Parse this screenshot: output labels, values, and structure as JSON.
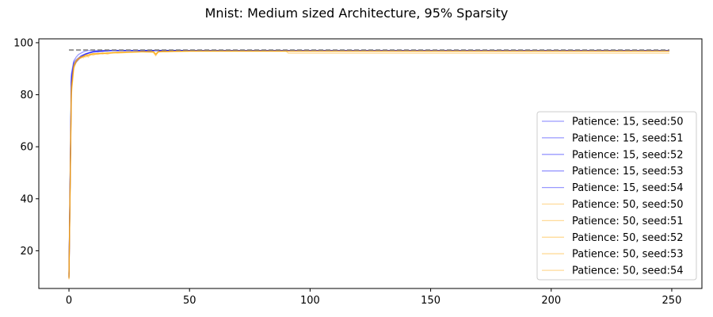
{
  "chart_data": {
    "type": "line",
    "title": "Mnist: Medium sized Architecture, 95% Sparsity",
    "xlabel": "",
    "ylabel": "",
    "xlim": [
      -12.5,
      262.5
    ],
    "ylim": [
      5.5,
      101.5
    ],
    "x_ticks": [
      0,
      50,
      100,
      150,
      200,
      250
    ],
    "y_ticks": [
      20,
      40,
      60,
      80,
      100
    ],
    "grid": false,
    "legend_position": "center-right",
    "colors": {
      "patience15": "#0000ff",
      "patience50": "#ffa500",
      "dashed_ref": "#808080"
    },
    "x": [
      0,
      1,
      2,
      3,
      4,
      5,
      6,
      7,
      8,
      9,
      10,
      12,
      14,
      16,
      18,
      20,
      25,
      30,
      35,
      36,
      37,
      38,
      40,
      45,
      50,
      60,
      70,
      80,
      90,
      91,
      92,
      93,
      100,
      150,
      200,
      249
    ],
    "series": [
      {
        "name": "Patience: 15, seed:50",
        "color": "#0000ff",
        "values": [
          9.8,
          88,
          93,
          94.5,
          95.5,
          96,
          96.5,
          96.8,
          97,
          97,
          97,
          97,
          97,
          97,
          97,
          97,
          97,
          97,
          97,
          97,
          97,
          97,
          97,
          97,
          97,
          97,
          97,
          97,
          97,
          97,
          97,
          97,
          97,
          97,
          97,
          97
        ]
      },
      {
        "name": "Patience: 15, seed:51",
        "color": "#0000ff",
        "values": [
          10,
          85,
          91,
          92.5,
          93.5,
          94.5,
          95,
          95.5,
          96,
          96.2,
          96.5,
          96.6,
          96.8,
          96.9,
          97,
          97,
          97,
          97,
          97,
          97,
          97,
          97,
          97,
          97,
          97,
          97,
          97,
          97,
          97,
          97,
          97,
          97,
          97,
          97,
          97,
          97
        ]
      },
      {
        "name": "Patience: 15, seed:52",
        "color": "#0000ff",
        "values": [
          10.5,
          86,
          92,
          93,
          94,
          94.8,
          95.3,
          95.8,
          96,
          96.3,
          96.5,
          96.7,
          96.8,
          96.9,
          97,
          97,
          97,
          97,
          97,
          97,
          97,
          97,
          97,
          97,
          97,
          97,
          97,
          97,
          97,
          97,
          97,
          97,
          97,
          97,
          97,
          97
        ]
      },
      {
        "name": "Patience: 15, seed:53",
        "color": "#0000ff",
        "values": [
          9.5,
          84,
          91,
          92.8,
          93.8,
          94.6,
          95.1,
          95.6,
          95.9,
          96.2,
          96.4,
          96.6,
          96.8,
          96.9,
          97,
          97,
          97,
          97,
          97,
          97,
          97,
          97,
          97,
          97,
          97,
          97,
          97,
          97,
          97,
          97,
          97,
          97,
          97,
          97,
          97,
          97
        ]
      },
      {
        "name": "Patience: 15, seed:54",
        "color": "#0000ff",
        "values": [
          11,
          87,
          92.5,
          93.5,
          94.2,
          95,
          95.4,
          95.8,
          96.1,
          96.3,
          96.6,
          96.7,
          96.8,
          96.9,
          97,
          97,
          97,
          97,
          97,
          97,
          97,
          97,
          97,
          97,
          97,
          97,
          97,
          97,
          97,
          97,
          97,
          97,
          97,
          97,
          97,
          97
        ]
      },
      {
        "name": "Patience: 50, seed:50",
        "color": "#ffa500",
        "values": [
          9,
          80,
          90,
          92.5,
          94,
          94.5,
          94.2,
          95.2,
          94.5,
          95.5,
          95.8,
          95.5,
          96,
          95.6,
          96.2,
          96,
          96.3,
          96.5,
          96.2,
          95,
          96.5,
          96.6,
          96.5,
          96.7,
          96.8,
          96.8,
          96.8,
          96.8,
          96.8,
          96,
          96,
          96,
          96,
          96,
          96,
          96
        ]
      },
      {
        "name": "Patience: 50, seed:51",
        "color": "#ffa500",
        "values": [
          9.5,
          82,
          91,
          93,
          93.8,
          94.3,
          94.8,
          94.5,
          95.3,
          95.6,
          95.2,
          95.9,
          95.7,
          96.1,
          96,
          96.3,
          96.4,
          96.5,
          96.5,
          95.5,
          96.4,
          96.6,
          96.6,
          96.7,
          96.8,
          96.8,
          96.8,
          96.8,
          96.8,
          96.8,
          96.8,
          96.8,
          96.8,
          96.8,
          96.8,
          96.8
        ]
      },
      {
        "name": "Patience: 50, seed:52",
        "color": "#ffa500",
        "values": [
          10,
          83,
          91.5,
          93.2,
          94.1,
          94,
          94.9,
          95.3,
          95,
          95.7,
          95.5,
          96,
          95.8,
          96.2,
          96.1,
          96.3,
          96.4,
          96.5,
          96.6,
          95.8,
          96.5,
          96.6,
          96.7,
          96.7,
          96.8,
          96.8,
          96.8,
          96.8,
          96.8,
          96.8,
          96.8,
          96.8,
          96.8,
          96.8,
          96.8,
          96.8
        ]
      },
      {
        "name": "Patience: 50, seed:53",
        "color": "#ffa500",
        "values": [
          9.2,
          81,
          90.5,
          92.8,
          93.6,
          94.4,
          94.6,
          95,
          95.4,
          95.2,
          95.8,
          95.7,
          96,
          95.9,
          96.2,
          96.2,
          96.4,
          96.5,
          96.5,
          95.3,
          96.4,
          96.6,
          96.6,
          96.7,
          96.8,
          96.8,
          96.8,
          96.8,
          96.8,
          96.8,
          96.8,
          96.8,
          96.8,
          96.8,
          96.8,
          96.8
        ]
      },
      {
        "name": "Patience: 50, seed:54",
        "color": "#ffa500",
        "values": [
          9.8,
          82.5,
          91.2,
          93.1,
          93.9,
          94.6,
          94.7,
          95.4,
          95.2,
          95.6,
          95.9,
          95.8,
          96.1,
          96,
          96.2,
          96.3,
          96.4,
          96.5,
          96.6,
          95.6,
          96.5,
          96.6,
          96.7,
          96.7,
          96.8,
          96.8,
          96.8,
          96.8,
          96.8,
          96.8,
          96.8,
          96.8,
          96.8,
          96.8,
          96.8,
          96.8
        ]
      }
    ],
    "reference_lines": [
      {
        "y": 97.2,
        "color": "#808080",
        "style": "dashed"
      }
    ]
  }
}
